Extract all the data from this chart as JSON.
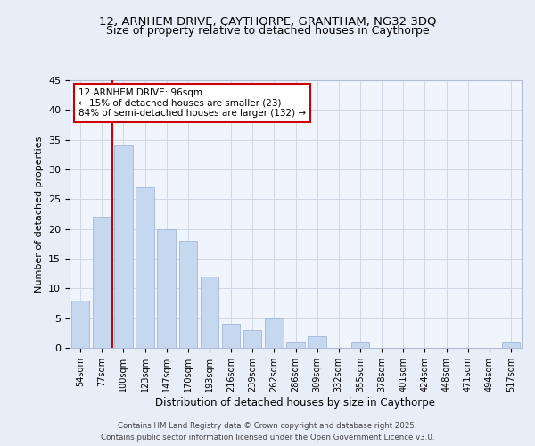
{
  "title_line1": "12, ARNHEM DRIVE, CAYTHORPE, GRANTHAM, NG32 3DQ",
  "title_line2": "Size of property relative to detached houses in Caythorpe",
  "xlabel": "Distribution of detached houses by size in Caythorpe",
  "ylabel": "Number of detached properties",
  "categories": [
    "54sqm",
    "77sqm",
    "100sqm",
    "123sqm",
    "147sqm",
    "170sqm",
    "193sqm",
    "216sqm",
    "239sqm",
    "262sqm",
    "286sqm",
    "309sqm",
    "332sqm",
    "355sqm",
    "378sqm",
    "401sqm",
    "424sqm",
    "448sqm",
    "471sqm",
    "494sqm",
    "517sqm"
  ],
  "values": [
    8,
    22,
    34,
    27,
    20,
    18,
    12,
    4,
    3,
    5,
    1,
    2,
    0,
    1,
    0,
    0,
    0,
    0,
    0,
    0,
    1
  ],
  "bar_color": "#c5d8f0",
  "bar_edge_color": "#a0b8d8",
  "vline_color": "#cc0000",
  "vline_x": 1.5,
  "annotation_title": "12 ARNHEM DRIVE: 96sqm",
  "annotation_line1": "← 15% of detached houses are smaller (23)",
  "annotation_line2": "84% of semi-detached houses are larger (132) →",
  "annotation_box_color": "#ffffff",
  "annotation_box_edge": "#cc0000",
  "ylim": [
    0,
    45
  ],
  "yticks": [
    0,
    5,
    10,
    15,
    20,
    25,
    30,
    35,
    40,
    45
  ],
  "footer_line1": "Contains HM Land Registry data © Crown copyright and database right 2025.",
  "footer_line2": "Contains public sector information licensed under the Open Government Licence v3.0.",
  "bg_color": "#e8eef8",
  "plot_bg_color": "#f0f4fc",
  "grid_color": "#d0d8e8"
}
